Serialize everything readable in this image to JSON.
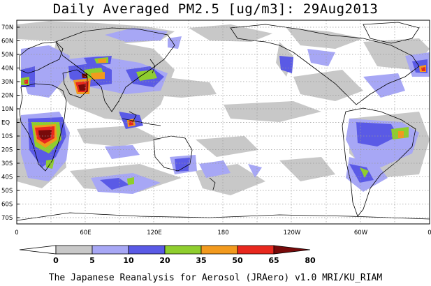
{
  "title": "Daily Averaged PM2.5 [ug/m3]: 29Aug2013",
  "footer": "The Japanese Reanalysis for Aerosol (JRAero) v1.0 MRI/KU_RIAM",
  "lat_labels": [
    "70N",
    "60N",
    "50N",
    "40N",
    "30N",
    "20N",
    "10N",
    "EQ",
    "10S",
    "20S",
    "30S",
    "40S",
    "50S",
    "60S",
    "70S"
  ],
  "lon_labels": [
    "0",
    "60E",
    "120E",
    "180",
    "120W",
    "60W",
    "0"
  ],
  "colorbar": {
    "labels": [
      "0",
      "5",
      "10",
      "20",
      "35",
      "50",
      "65",
      "80"
    ],
    "colors": [
      "#ffffff",
      "#c8c8c8",
      "#a7a7f5",
      "#5a5ae6",
      "#8fce2e",
      "#f29a1e",
      "#e8281e",
      "#780a0a"
    ]
  },
  "chart_data": {
    "type": "heatmap",
    "title": "Daily Averaged PM2.5 [ug/m3]: 29Aug2013",
    "x_range": [
      0,
      360
    ],
    "y_range": [
      -75,
      75
    ],
    "levels": [
      0,
      5,
      10,
      20,
      35,
      50,
      65,
      80
    ]
  }
}
